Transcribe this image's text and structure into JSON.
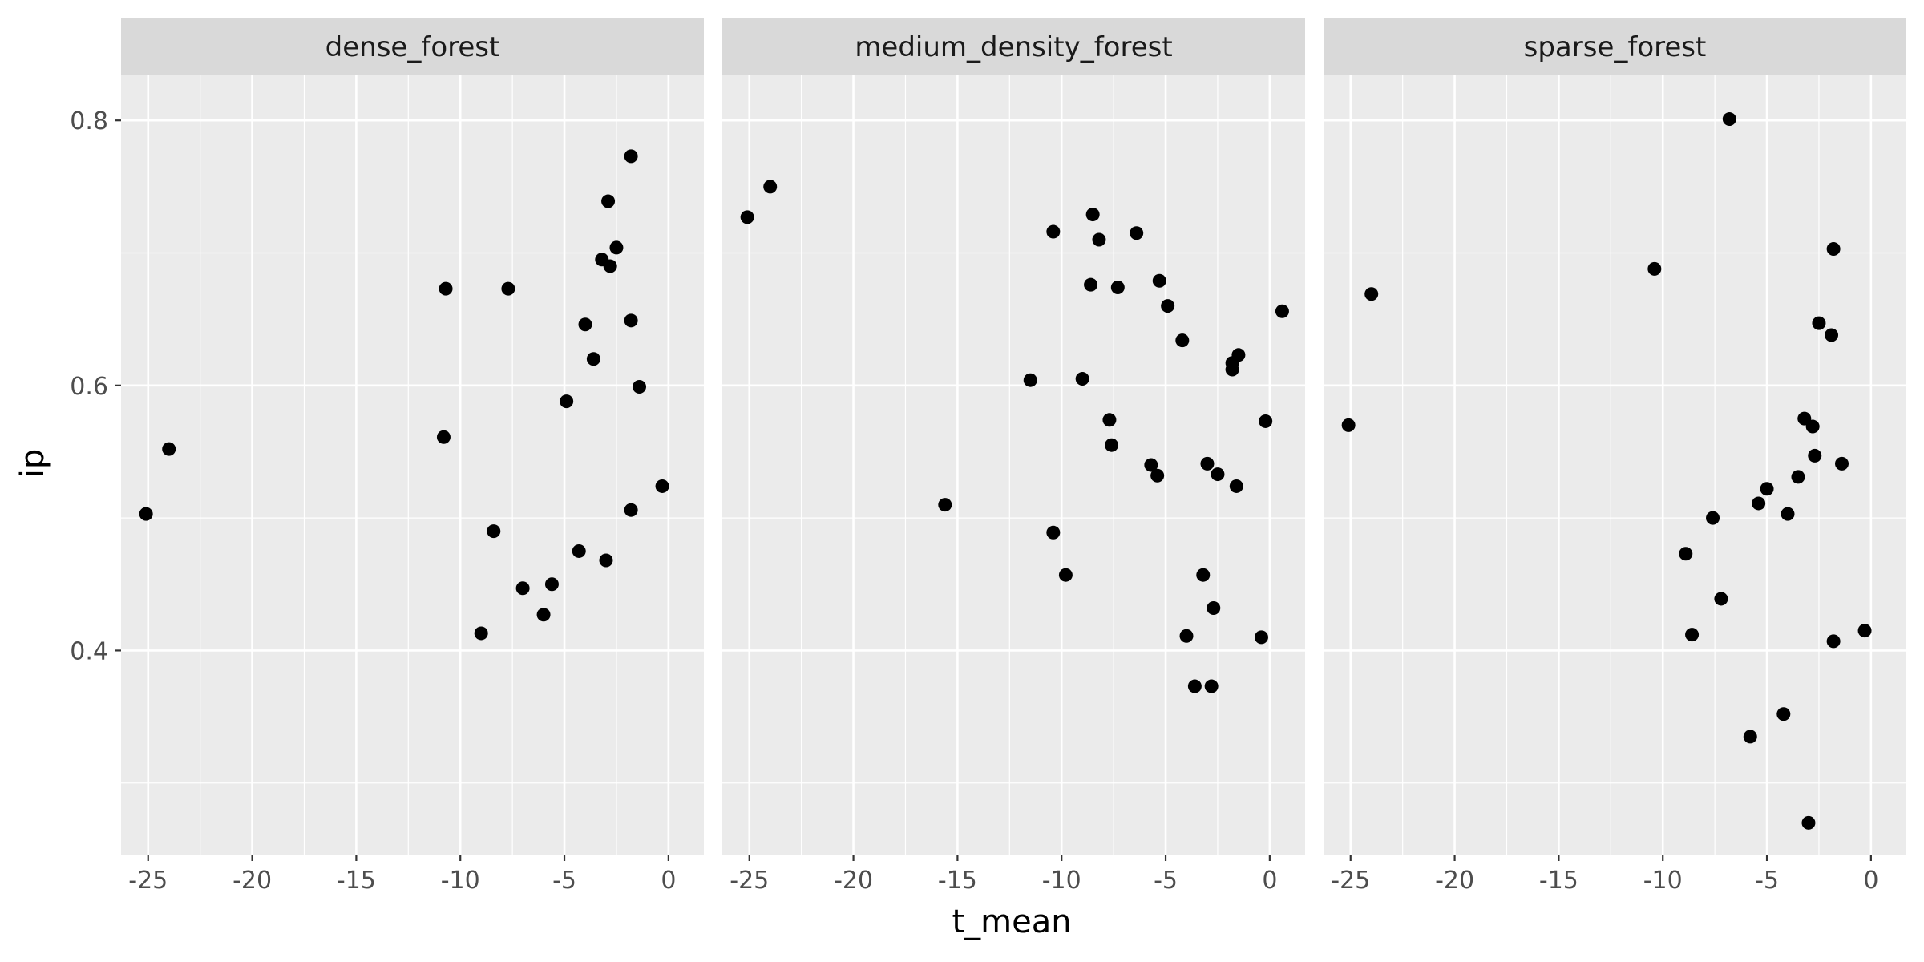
{
  "chart_data": {
    "type": "scatter",
    "xlabel": "t_mean",
    "ylabel": "ip",
    "xlim": [
      -26.3,
      1.7
    ],
    "ylim": [
      0.246,
      0.834
    ],
    "x_ticks": [
      -25,
      -20,
      -15,
      -10,
      -5,
      0
    ],
    "y_ticks": [
      0.4,
      0.6,
      0.8
    ],
    "grid": true,
    "colors": {
      "panel_bg": "#ebebeb",
      "strip_bg": "#d9d9d9",
      "grid": "#ffffff",
      "point": "#000000"
    },
    "facets": [
      {
        "name": "dense_forest",
        "points": [
          [
            -25.1,
            0.503
          ],
          [
            -24.0,
            0.552
          ],
          [
            -10.7,
            0.673
          ],
          [
            -10.8,
            0.561
          ],
          [
            -7.7,
            0.673
          ],
          [
            -9.0,
            0.413
          ],
          [
            -8.4,
            0.49
          ],
          [
            -7.0,
            0.447
          ],
          [
            -6.0,
            0.427
          ],
          [
            -5.6,
            0.45
          ],
          [
            -4.9,
            0.588
          ],
          [
            -4.3,
            0.475
          ],
          [
            -4.0,
            0.646
          ],
          [
            -3.6,
            0.62
          ],
          [
            -3.2,
            0.695
          ],
          [
            -2.9,
            0.739
          ],
          [
            -2.8,
            0.69
          ],
          [
            -2.5,
            0.704
          ],
          [
            -1.8,
            0.773
          ],
          [
            -1.8,
            0.649
          ],
          [
            -1.8,
            0.506
          ],
          [
            -1.4,
            0.599
          ],
          [
            -3.0,
            0.468
          ],
          [
            -0.3,
            0.524
          ]
        ]
      },
      {
        "name": "medium_density_forest",
        "points": [
          [
            -25.1,
            0.727
          ],
          [
            -24.0,
            0.75
          ],
          [
            -15.6,
            0.51
          ],
          [
            -11.5,
            0.604
          ],
          [
            -10.4,
            0.716
          ],
          [
            -10.4,
            0.489
          ],
          [
            -9.8,
            0.457
          ],
          [
            -9.0,
            0.605
          ],
          [
            -8.6,
            0.676
          ],
          [
            -8.5,
            0.729
          ],
          [
            -8.2,
            0.71
          ],
          [
            -7.7,
            0.574
          ],
          [
            -7.6,
            0.555
          ],
          [
            -7.3,
            0.674
          ],
          [
            -6.4,
            0.715
          ],
          [
            -5.7,
            0.54
          ],
          [
            -5.4,
            0.532
          ],
          [
            -5.3,
            0.679
          ],
          [
            -4.9,
            0.66
          ],
          [
            -4.2,
            0.634
          ],
          [
            -4.0,
            0.411
          ],
          [
            -3.6,
            0.373
          ],
          [
            -3.2,
            0.457
          ],
          [
            -3.0,
            0.541
          ],
          [
            -2.8,
            0.373
          ],
          [
            -2.7,
            0.432
          ],
          [
            -2.5,
            0.533
          ],
          [
            -1.8,
            0.617
          ],
          [
            -1.8,
            0.612
          ],
          [
            -1.6,
            0.524
          ],
          [
            -1.5,
            0.623
          ],
          [
            -0.4,
            0.41
          ],
          [
            -0.2,
            0.573
          ],
          [
            0.6,
            0.656
          ]
        ]
      },
      {
        "name": "sparse_forest",
        "points": [
          [
            -25.1,
            0.57
          ],
          [
            -24.0,
            0.669
          ],
          [
            -10.4,
            0.688
          ],
          [
            -6.8,
            0.801
          ],
          [
            -8.9,
            0.473
          ],
          [
            -8.6,
            0.412
          ],
          [
            -7.6,
            0.5
          ],
          [
            -7.2,
            0.439
          ],
          [
            -5.8,
            0.335
          ],
          [
            -5.4,
            0.511
          ],
          [
            -5.0,
            0.522
          ],
          [
            -4.2,
            0.352
          ],
          [
            -4.0,
            0.503
          ],
          [
            -3.5,
            0.531
          ],
          [
            -3.2,
            0.575
          ],
          [
            -2.8,
            0.569
          ],
          [
            -2.7,
            0.547
          ],
          [
            -2.5,
            0.647
          ],
          [
            -1.9,
            0.638
          ],
          [
            -1.8,
            0.703
          ],
          [
            -1.8,
            0.407
          ],
          [
            -1.4,
            0.541
          ],
          [
            -3.0,
            0.27
          ],
          [
            -0.3,
            0.415
          ]
        ]
      }
    ]
  }
}
